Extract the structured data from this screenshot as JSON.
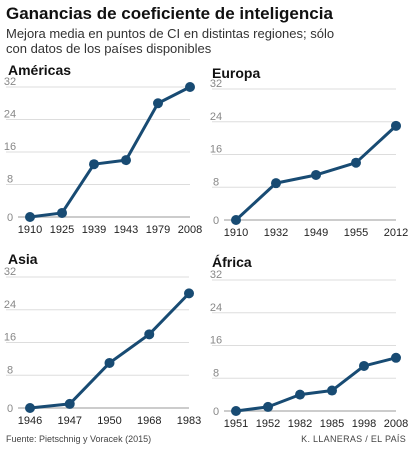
{
  "title": "Ganancias de coeficiente de inteligencia",
  "subtitle": "Mejora media en puntos de CI en distintas regiones; sólo con datos de los países disponibles",
  "source": "Fuente: Pietschnig y Voracek (2015)",
  "credit": "K. LLANERAS  /  EL PAÍS",
  "colors": {
    "line": "#184b73",
    "grid": "#dddddd",
    "tick": "#888888"
  },
  "chart_data": [
    {
      "type": "line",
      "title": "Américas",
      "categories": [
        "1910",
        "1925",
        "1939",
        "1943",
        "1979",
        "2008"
      ],
      "values": [
        0,
        1,
        13,
        14,
        28,
        32
      ],
      "yticks": [
        0,
        8,
        16,
        24,
        32
      ],
      "ylim": [
        0,
        32
      ],
      "grid": true
    },
    {
      "type": "line",
      "title": "Europa",
      "categories": [
        "1910",
        "1932",
        "1949",
        "1955",
        "2012"
      ],
      "values": [
        0,
        9,
        11,
        14,
        23
      ],
      "yticks": [
        0,
        8,
        16,
        24,
        32
      ],
      "ylim": [
        0,
        32
      ],
      "grid": true
    },
    {
      "type": "line",
      "title": "Asia",
      "categories": [
        "1946",
        "1947",
        "1950",
        "1968",
        "1983"
      ],
      "values": [
        0,
        1,
        11,
        18,
        28
      ],
      "yticks": [
        0,
        8,
        16,
        24,
        32
      ],
      "ylim": [
        0,
        32
      ],
      "grid": true
    },
    {
      "type": "line",
      "title": "África",
      "categories": [
        "1951",
        "1952",
        "1982",
        "1985",
        "1998",
        "2008"
      ],
      "values": [
        0,
        1,
        4,
        5,
        11,
        13
      ],
      "yticks": [
        0,
        8,
        16,
        24,
        32
      ],
      "ylim": [
        0,
        32
      ],
      "grid": true
    }
  ]
}
